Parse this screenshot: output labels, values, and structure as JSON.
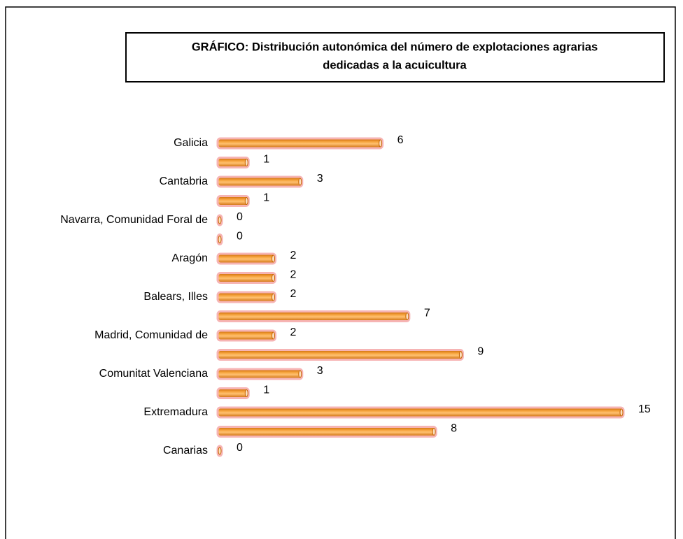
{
  "chart_data": {
    "type": "barh",
    "title": [
      "GRÁFICO: Distribución autonómica del número de explotaciones agrarias",
      "dedicadas a la acuicultura"
    ],
    "categories": [
      "Galicia",
      null,
      "Cantabria",
      null,
      "Navarra, Comunidad Foral de",
      null,
      "Aragón",
      null,
      "Balears, Illes",
      null,
      "Madrid, Comunidad de",
      null,
      "Comunitat Valenciana",
      null,
      "Extremadura",
      null,
      "Canarias"
    ],
    "values": [
      6,
      1,
      3,
      1,
      0,
      0,
      2,
      2,
      2,
      7,
      2,
      9,
      3,
      1,
      15,
      8,
      0
    ],
    "color": "#e8850c"
  }
}
